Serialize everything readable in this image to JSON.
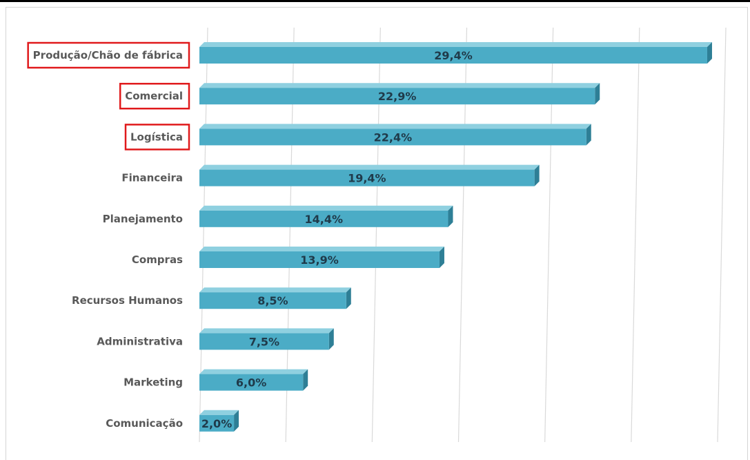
{
  "chart_data": {
    "type": "bar",
    "orientation": "horizontal",
    "title": "",
    "xlabel": "",
    "ylabel": "",
    "categories": [
      "Produção/Chão de fábrica",
      "Comercial",
      "Logística",
      "Financeira",
      "Planejamento",
      "Compras",
      "Recursos Humanos",
      "Administrativa",
      "Marketing",
      "Comunicação"
    ],
    "values": [
      29.4,
      22.9,
      22.4,
      19.4,
      14.4,
      13.9,
      8.5,
      7.5,
      6.0,
      2.0
    ],
    "value_labels": [
      "29,4%",
      "22,9%",
      "22,4%",
      "19,4%",
      "14,4%",
      "13,9%",
      "8,5%",
      "7,5%",
      "6,0%",
      "2,0%"
    ],
    "value_unit": "%",
    "xlim": [
      0,
      30
    ],
    "grid": true,
    "legend": "none",
    "highlighted_categories": [
      "Produção/Chão de fábrica",
      "Comercial",
      "Logística"
    ],
    "colors": {
      "bar_front": "#4bacc6",
      "bar_side": "#2e7f96",
      "bar_top": "#8fd0e0",
      "highlight": "#e0191b",
      "grid": "#d9d9d9",
      "label_text": "#595959",
      "value_text": "#1f3a4a"
    }
  }
}
